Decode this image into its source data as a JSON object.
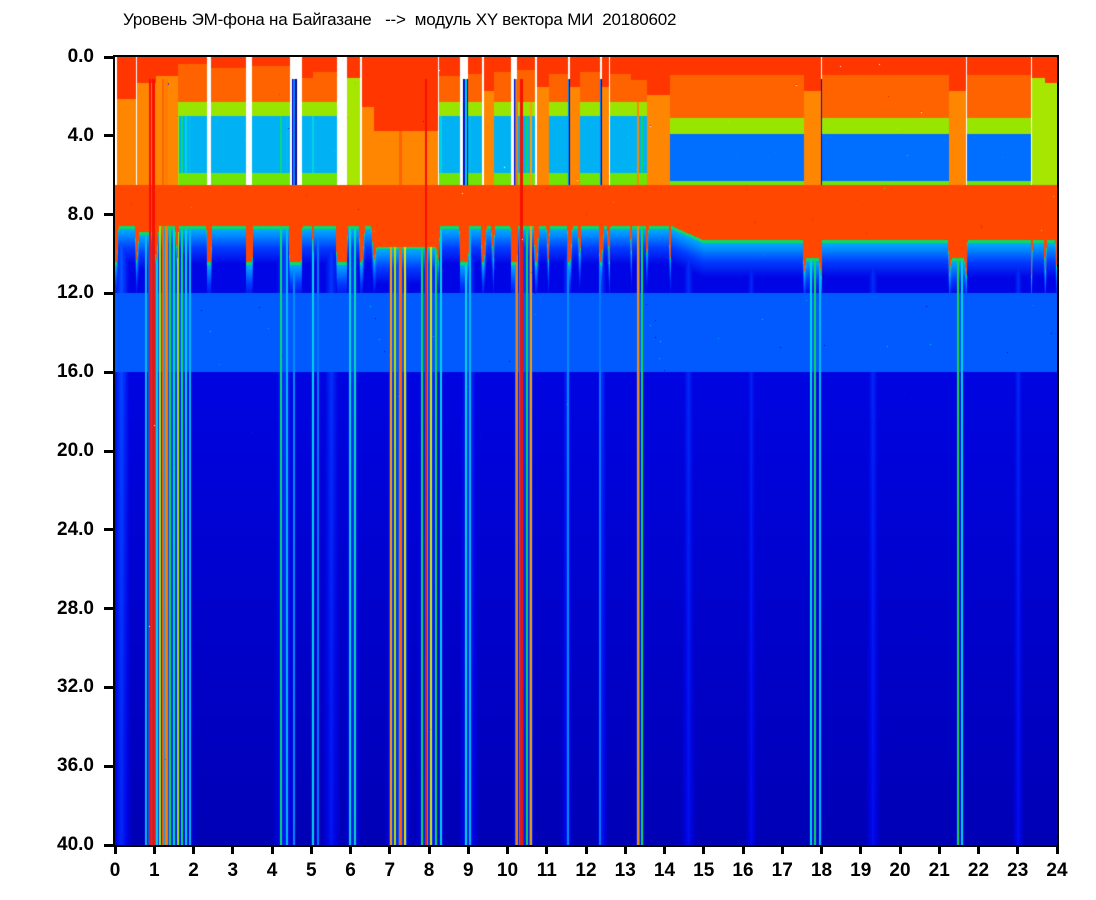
{
  "title": "Уровень ЭМ-фона на Байгазане   -->  модуль XY вектора МИ  20180602",
  "chart_data": {
    "type": "heatmap",
    "title": "Уровень ЭМ-фона на Байгазане   -->  модуль XY вектора МИ  20180602",
    "station": "Байгазане",
    "date_label": "20180602",
    "x_axis": {
      "min": 0,
      "max": 24,
      "ticks": [
        "0",
        "1",
        "2",
        "3",
        "4",
        "5",
        "6",
        "7",
        "8",
        "9",
        "10",
        "11",
        "12",
        "13",
        "14",
        "15",
        "16",
        "17",
        "18",
        "19",
        "20",
        "21",
        "22",
        "23",
        "24"
      ]
    },
    "y_axis": {
      "min": 0,
      "max": 40,
      "inverted": true,
      "ticks": [
        "0.0",
        "4.0",
        "8.0",
        "12.0",
        "16.0",
        "20.0",
        "24.0",
        "28.0",
        "32.0",
        "36.0",
        "40.0"
      ]
    },
    "background_color": "#ffffff",
    "axis_color": "#000000",
    "colormap": {
      "no_data_color": "#ffffff",
      "saturated_color": "#ffffff",
      "stops": [
        [
          0.05,
          "#000082"
        ],
        [
          0.13,
          "#0000be"
        ],
        [
          0.2,
          "#0005e6"
        ],
        [
          0.3,
          "#003cff"
        ],
        [
          0.38,
          "#008cff"
        ],
        [
          0.46,
          "#00d2eb"
        ],
        [
          0.52,
          "#00e196"
        ],
        [
          0.58,
          "#14d23c"
        ],
        [
          0.65,
          "#78e600"
        ],
        [
          0.72,
          "#e1e600"
        ],
        [
          0.8,
          "#ffaa00"
        ],
        [
          0.87,
          "#ff5000"
        ],
        [
          0.94,
          "#ff1400"
        ],
        [
          1.0,
          "#e60000"
        ]
      ]
    },
    "model": {
      "seed": 602,
      "body": {
        "edge_base": 8.6,
        "edge_noise": 0.8,
        "late_t": 14.2,
        "edge_late_shift": 0.7,
        "surface_v": 0.56,
        "surface_drop": 0.31,
        "drop_scale": 2.3,
        "deep_drop": 0.09,
        "cyan_band": {
          "center": 14.0,
          "half_width": 2.0,
          "density": 0.3,
          "v_min": 0.33,
          "v_spread": 0.17
        },
        "red_band": {
          "f_start": 6.5,
          "density_base": 0.18,
          "density_act": 0.72,
          "v": 0.88
        }
      },
      "activity_segments": [
        [
          0.05,
          0.55,
          0.5,
          2.6,
          "sparse"
        ],
        [
          0.55,
          1.05,
          0.25,
          1.8,
          "sparse"
        ],
        [
          1.05,
          1.6,
          0.3,
          1.4,
          "sparse"
        ],
        [
          1.6,
          2.35,
          1.0,
          0.8,
          "full"
        ],
        [
          2.45,
          3.35,
          1.0,
          1.0,
          "full"
        ],
        [
          3.5,
          4.45,
          1.0,
          0.9,
          "full"
        ],
        [
          4.75,
          5.05,
          0.75,
          1.5,
          "full"
        ],
        [
          5.05,
          5.65,
          0.9,
          1.2,
          "full"
        ],
        [
          5.9,
          6.25,
          0.65,
          1.5,
          "redcol"
        ],
        [
          6.3,
          6.6,
          0.3,
          3.0,
          "sparse"
        ],
        [
          6.6,
          8.25,
          0.13,
          4.2,
          "sparse"
        ],
        [
          8.25,
          8.8,
          0.8,
          1.4,
          "full"
        ],
        [
          9.0,
          9.35,
          0.8,
          1.3,
          "full"
        ],
        [
          9.4,
          9.65,
          0.3,
          2.2,
          "sparse"
        ],
        [
          9.65,
          10.1,
          0.85,
          1.2,
          "full"
        ],
        [
          10.25,
          10.7,
          0.85,
          1.1,
          "full"
        ],
        [
          10.75,
          11.05,
          0.35,
          2.0,
          "sparse"
        ],
        [
          11.05,
          11.55,
          0.85,
          1.3,
          "full"
        ],
        [
          11.6,
          11.85,
          0.35,
          2.0,
          "sparse"
        ],
        [
          11.85,
          12.35,
          0.85,
          1.2,
          "full"
        ],
        [
          12.4,
          12.6,
          0.35,
          2.0,
          "sparse"
        ],
        [
          12.6,
          13.15,
          0.85,
          1.3,
          "full"
        ],
        [
          13.15,
          13.55,
          0.7,
          1.6,
          "full"
        ],
        [
          13.55,
          14.15,
          0.45,
          2.4,
          "sparse"
        ],
        [
          14.15,
          17.55,
          1.0,
          1.1,
          "dense"
        ],
        [
          17.55,
          18.0,
          0.15,
          2.2,
          "sparse"
        ],
        [
          18.0,
          21.25,
          1.0,
          1.1,
          "dense"
        ],
        [
          21.25,
          21.7,
          0.15,
          2.2,
          "sparse"
        ],
        [
          21.7,
          23.35,
          1.0,
          1.1,
          "dense"
        ],
        [
          23.35,
          23.7,
          0.6,
          1.5,
          "redcol"
        ],
        [
          23.7,
          24.0,
          0.5,
          1.8,
          "redcol"
        ]
      ],
      "streaks": [
        [
          0.78,
          0.48,
          2
        ],
        [
          0.88,
          1.06,
          2
        ],
        [
          0.97,
          1.06,
          3
        ],
        [
          1.06,
          0.52,
          2
        ],
        [
          1.13,
          0.75,
          2
        ],
        [
          1.22,
          0.95,
          2
        ],
        [
          1.3,
          0.93,
          3
        ],
        [
          1.4,
          0.62,
          2
        ],
        [
          1.5,
          0.55,
          2
        ],
        [
          1.6,
          0.75,
          2
        ],
        [
          1.7,
          0.6,
          2
        ],
        [
          1.8,
          0.52,
          2
        ],
        [
          1.9,
          0.48,
          2
        ],
        [
          4.22,
          0.6,
          2
        ],
        [
          4.38,
          0.48,
          2
        ],
        [
          4.55,
          0.42,
          2
        ],
        [
          5.02,
          0.52,
          2
        ],
        [
          5.15,
          0.4,
          2
        ],
        [
          5.98,
          0.52,
          2
        ],
        [
          6.1,
          0.56,
          2
        ],
        [
          7.02,
          0.9,
          2
        ],
        [
          7.12,
          0.76,
          2
        ],
        [
          7.26,
          0.95,
          3
        ],
        [
          7.38,
          0.8,
          2
        ],
        [
          7.82,
          0.62,
          2
        ],
        [
          7.92,
          1.06,
          2
        ],
        [
          8.04,
          0.8,
          2
        ],
        [
          8.16,
          0.62,
          2
        ],
        [
          8.3,
          0.52,
          2
        ],
        [
          8.92,
          0.52,
          2
        ],
        [
          9.04,
          0.48,
          2
        ],
        [
          10.22,
          0.93,
          2
        ],
        [
          10.34,
          1.06,
          3
        ],
        [
          10.48,
          0.62,
          2
        ],
        [
          10.58,
          0.9,
          2
        ],
        [
          11.52,
          0.42,
          2
        ],
        [
          12.35,
          0.4,
          2
        ],
        [
          13.32,
          0.92,
          2
        ],
        [
          13.42,
          0.62,
          2
        ],
        [
          17.72,
          0.52,
          2
        ],
        [
          17.82,
          0.62,
          2
        ],
        [
          17.96,
          0.48,
          2
        ],
        [
          21.47,
          0.65,
          2
        ],
        [
          21.57,
          0.52,
          2
        ]
      ],
      "washes": [
        [
          0.15,
          0.36,
          12
        ],
        [
          1.4,
          0.36,
          30
        ],
        [
          4.3,
          0.33,
          14
        ],
        [
          5.5,
          0.32,
          12
        ],
        [
          6.05,
          0.33,
          10
        ],
        [
          7.2,
          0.35,
          16
        ],
        [
          8.0,
          0.36,
          16
        ],
        [
          9.0,
          0.34,
          12
        ],
        [
          10.4,
          0.34,
          14
        ],
        [
          11.5,
          0.31,
          8
        ],
        [
          12.4,
          0.31,
          8
        ],
        [
          14.6,
          0.3,
          10
        ],
        [
          16.2,
          0.29,
          8
        ],
        [
          17.8,
          0.3,
          6
        ],
        [
          19.3,
          0.3,
          10
        ],
        [
          21.5,
          0.3,
          6
        ],
        [
          23.0,
          0.3,
          8
        ]
      ]
    }
  }
}
